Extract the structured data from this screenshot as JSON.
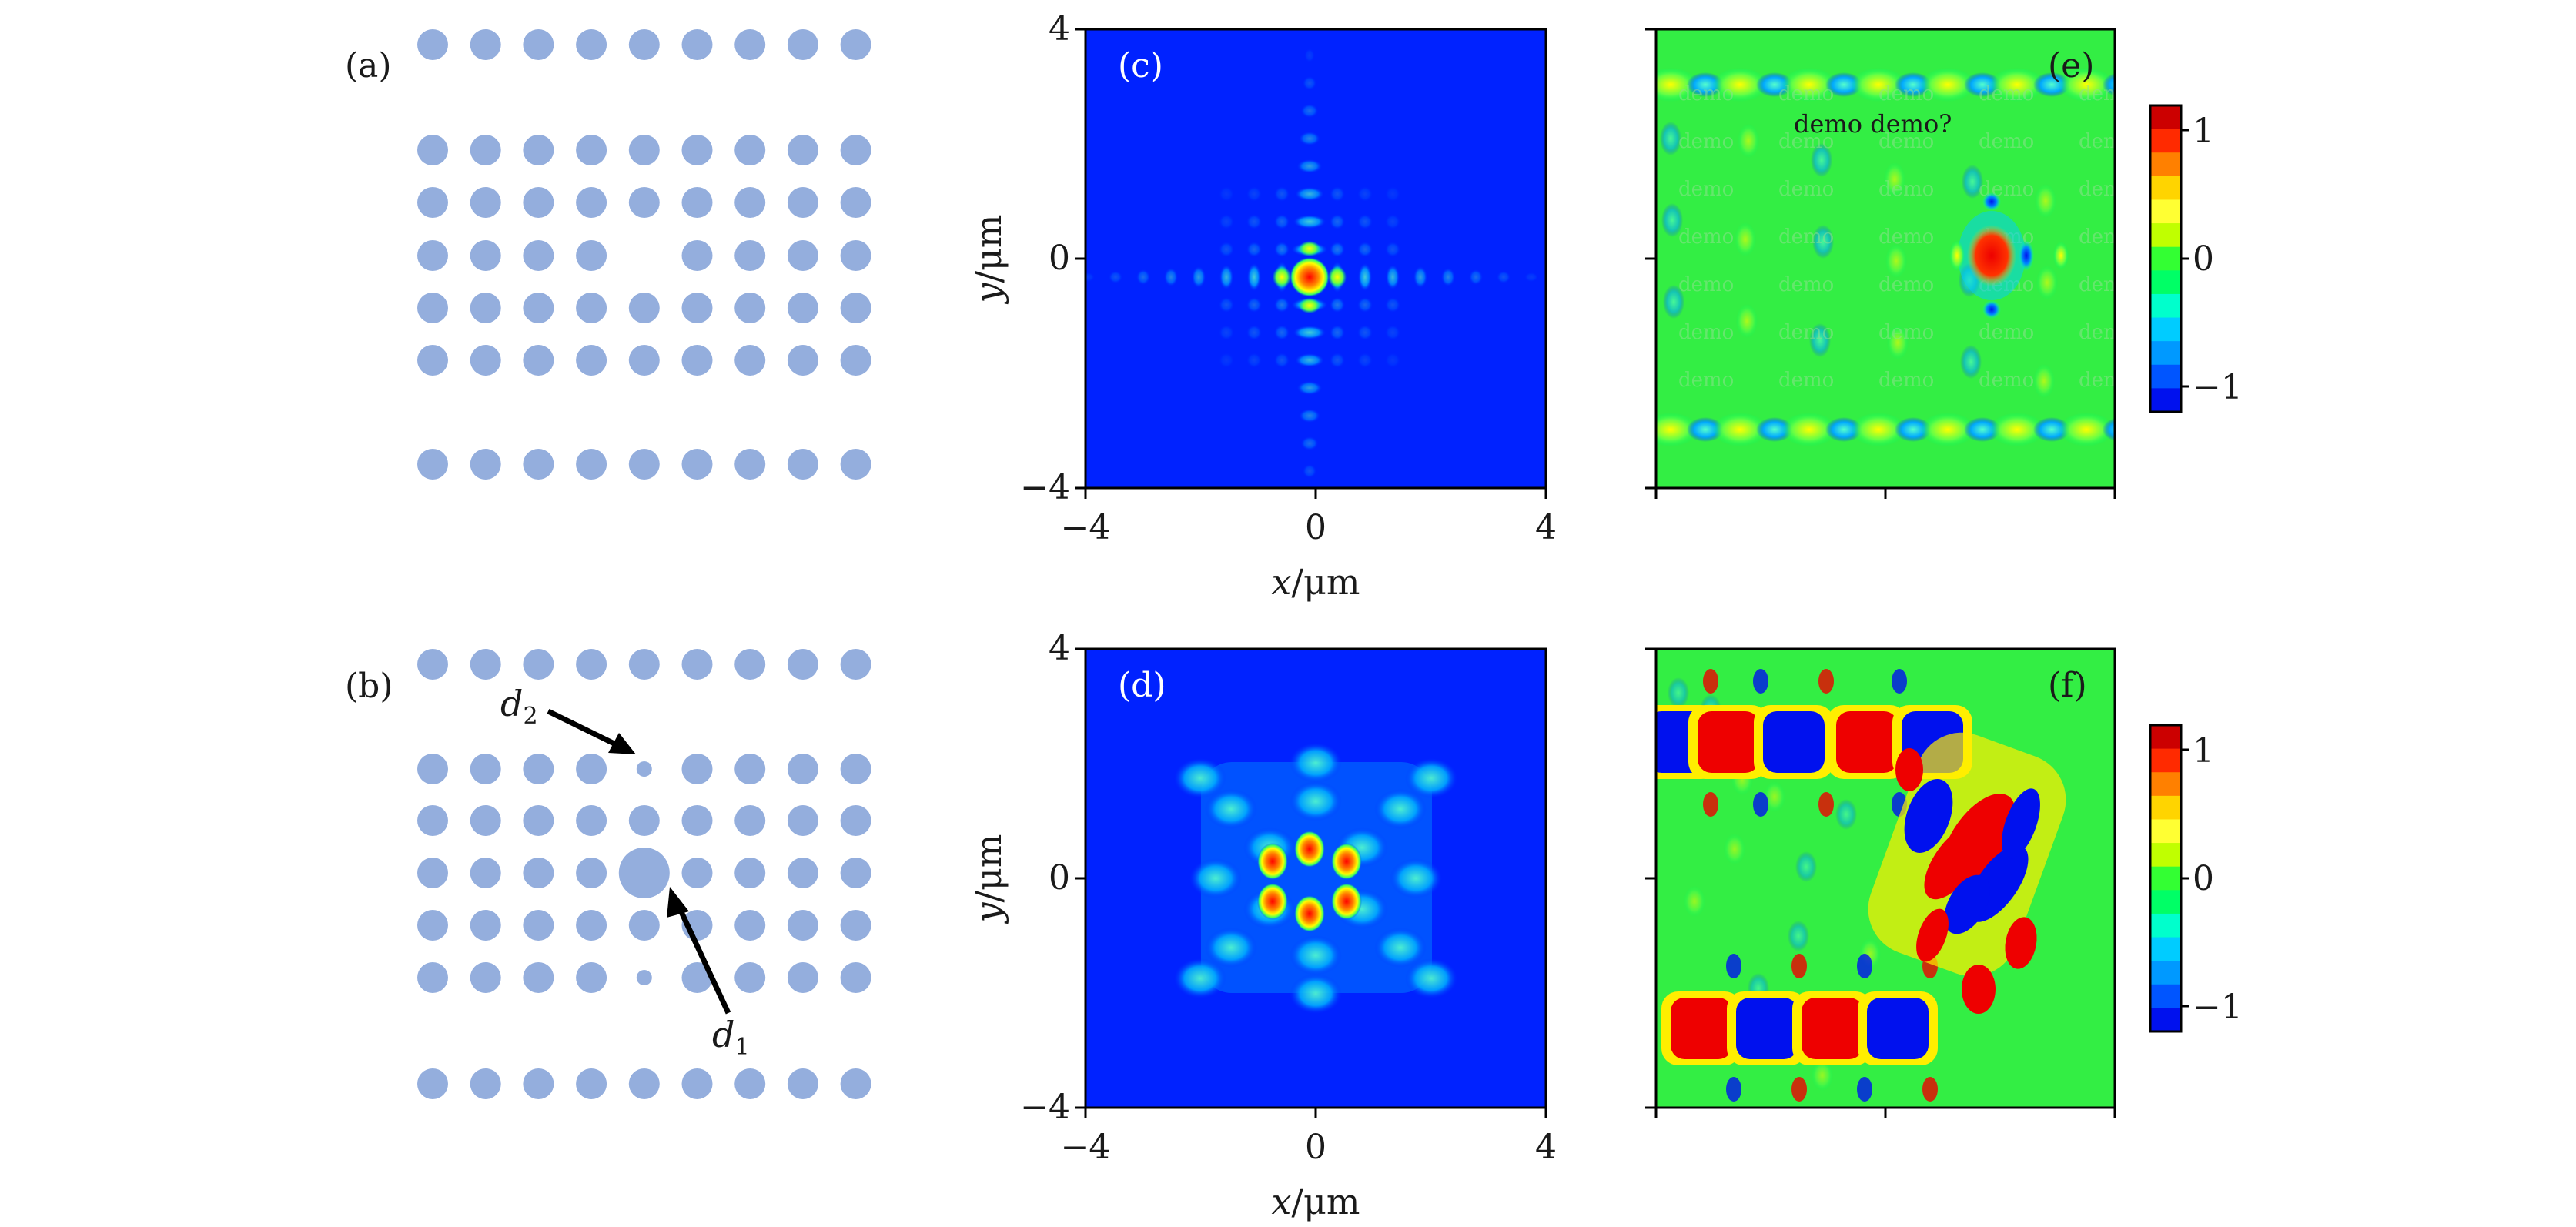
{
  "figure": {
    "panels": {
      "a": {
        "label": "(a)",
        "lattice": {
          "rows": 7,
          "cols": 9,
          "missing_row": 2,
          "missing_col": 4,
          "dot_color": "#94aedd"
        }
      },
      "b": {
        "label": "(b)",
        "d1_label": "d",
        "d1_sub": "1",
        "d2_label": "d",
        "d2_sub": "2",
        "dot_color": "#94aedd"
      },
      "c": {
        "label": "(c)"
      },
      "d": {
        "label": "(d)"
      },
      "e": {
        "label": "(e)",
        "annotation": "demo demo?",
        "watermark": "demo"
      },
      "f": {
        "label": "(f)"
      }
    },
    "axes": {
      "x_ticks": [
        "−4",
        "0",
        "4"
      ],
      "y_ticks": [
        "4",
        "0",
        "−4"
      ],
      "x_label_var": "x",
      "x_label_unit": "/μm",
      "y_label_var": "y",
      "y_label_unit": "/μm"
    },
    "colorbar": {
      "ticks": [
        "1",
        "0",
        "−1"
      ],
      "colors": [
        "#cc0000",
        "#ff2a00",
        "#ff8000",
        "#ffd400",
        "#ffff33",
        "#c0ff00",
        "#33ff33",
        "#00ff66",
        "#00ffcc",
        "#00ccff",
        "#0099ff",
        "#0055ff",
        "#0011ee"
      ]
    }
  },
  "chart_data": [
    {
      "type": "heatmap",
      "panel": "c",
      "title": "(c)",
      "xlabel": "x/μm",
      "ylabel": "y/μm",
      "xlim": [
        -4,
        4
      ],
      "ylim": [
        -4,
        4
      ],
      "xticks": [
        -4,
        0,
        4
      ],
      "yticks": [
        -4,
        0,
        4
      ],
      "description_values": {
        "peak_x": 0,
        "peak_y": -0.4
      }
    },
    {
      "type": "heatmap",
      "panel": "d",
      "title": "(d)",
      "xlabel": "x/μm",
      "ylabel": "y/μm",
      "xlim": [
        -4,
        4
      ],
      "ylim": [
        -4,
        4
      ],
      "xticks": [
        -4,
        0,
        4
      ],
      "yticks": [
        -4,
        0,
        4
      ]
    },
    {
      "type": "heatmap",
      "panel": "e",
      "title": "(e)",
      "colorbar_range": [
        -1.2,
        1.2
      ],
      "colorbar_ticks": [
        -1,
        0,
        1
      ]
    },
    {
      "type": "heatmap",
      "panel": "f",
      "title": "(f)",
      "colorbar_range": [
        -1.2,
        1.2
      ],
      "colorbar_ticks": [
        -1,
        0,
        1
      ]
    }
  ]
}
